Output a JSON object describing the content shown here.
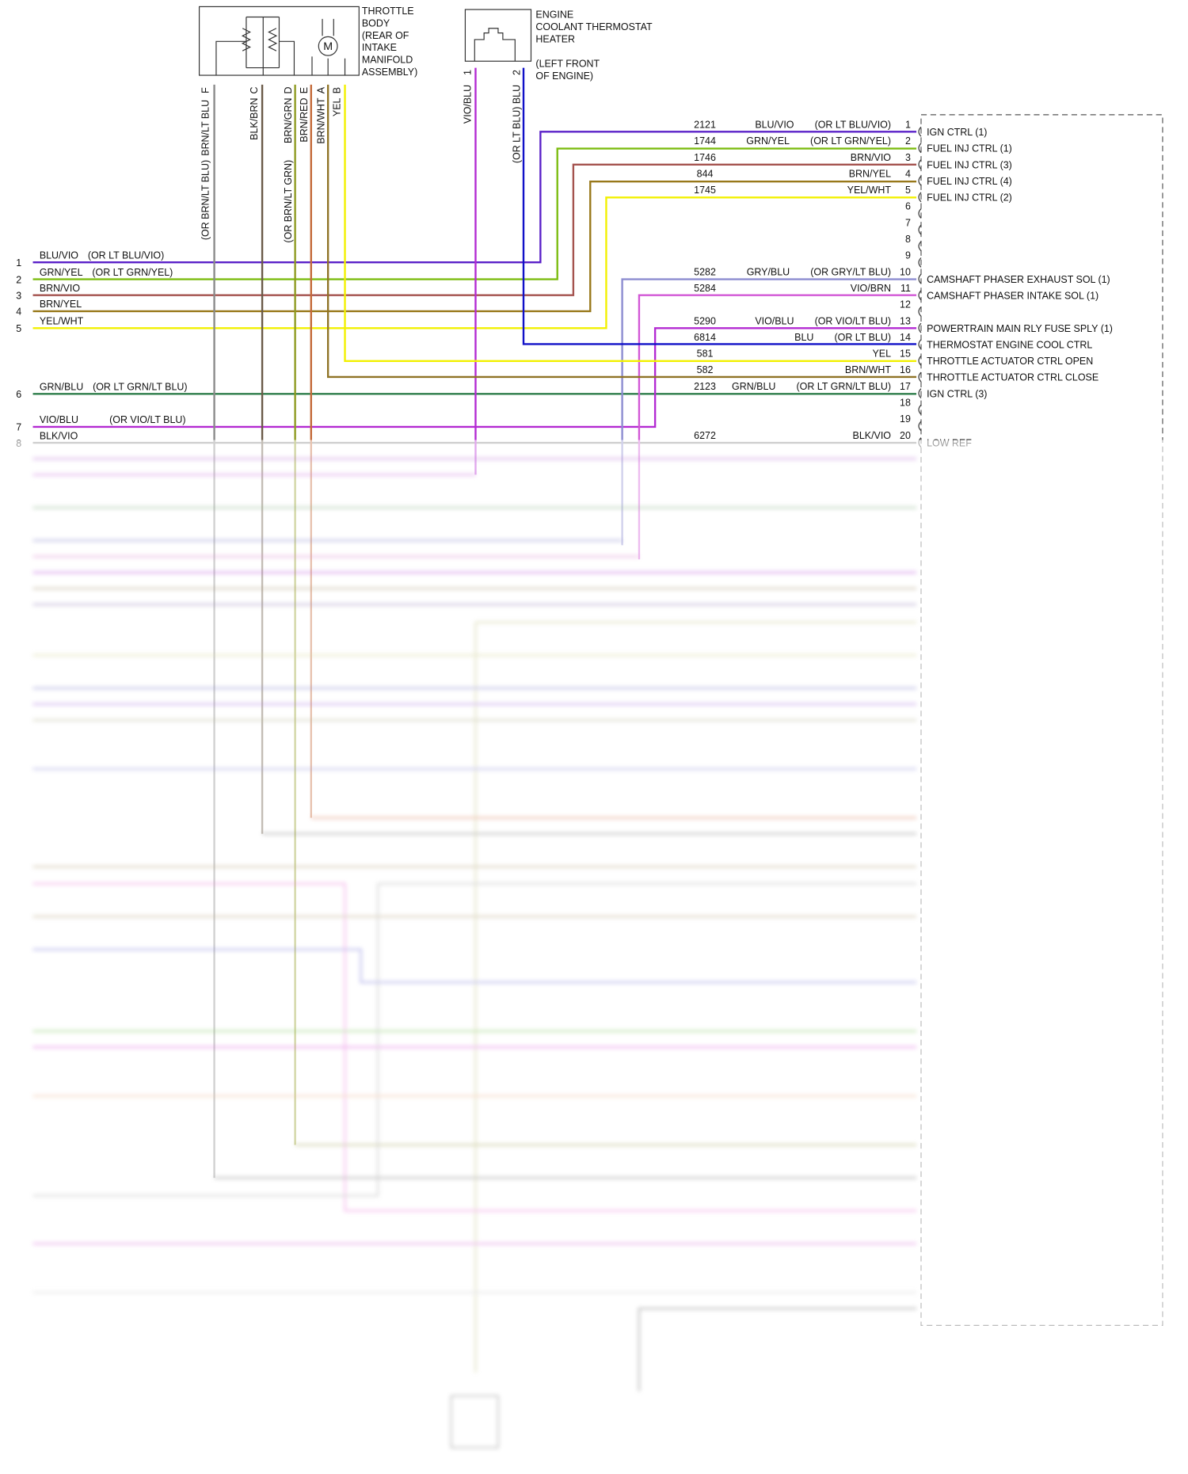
{
  "throttle_body": {
    "label": [
      "THROTTLE",
      "BODY",
      "(REAR OF",
      "INTAKE",
      "MANIFOLD",
      "ASSEMBLY)"
    ],
    "motor": "M",
    "pins": [
      {
        "pin": "F",
        "wire": "BRN/LT BLU",
        "alt": "(OR BRN/LT BLU)"
      },
      {
        "pin": "C",
        "wire": "BLK/BRN"
      },
      {
        "pin": "D",
        "wire": "BRN/GRN",
        "alt": "(OR BRN/LT GRN)"
      },
      {
        "pin": "E",
        "wire": "BRN/RED"
      },
      {
        "pin": "A",
        "wire": "BRN/WHT"
      },
      {
        "pin": "B",
        "wire": "YEL"
      }
    ]
  },
  "thermostat_heater": {
    "label": [
      "ENGINE",
      "COOLANT THERMOSTAT",
      "HEATER"
    ],
    "location": [
      "(LEFT FRONT",
      "OF ENGINE)"
    ],
    "pins": [
      {
        "pin": "1",
        "wire": "VIO/BLU"
      },
      {
        "pin": "2",
        "wire": "(OR LT BLU) BLU"
      }
    ]
  },
  "left_pins": [
    {
      "pin": "1",
      "wire": "BLU/VIO",
      "alt": "(OR LT BLU/VIO)"
    },
    {
      "pin": "2",
      "wire": "GRN/YEL",
      "alt": "(OR LT GRN/YEL)"
    },
    {
      "pin": "3",
      "wire": "BRN/VIO"
    },
    {
      "pin": "4",
      "wire": "BRN/YEL"
    },
    {
      "pin": "5",
      "wire": "YEL/WHT"
    },
    {
      "pin": "6",
      "wire": "GRN/BLU",
      "alt": "(OR LT GRN/LT BLU)"
    },
    {
      "pin": "7",
      "wire": "VIO/BLU",
      "alt": "(OR VIO/LT BLU)"
    },
    {
      "pin": "8",
      "wire": "BLK/VIO"
    }
  ],
  "right_rows": [
    {
      "pin": "1",
      "circuit": "2121",
      "wire": "BLU/VIO",
      "alt": "(OR LT BLU/VIO)",
      "function": "IGN CTRL (1)"
    },
    {
      "pin": "2",
      "circuit": "1744",
      "wire": "GRN/YEL",
      "alt": "(OR LT GRN/YEL)",
      "function": "FUEL INJ CTRL (1)"
    },
    {
      "pin": "3",
      "circuit": "1746",
      "wire": "BRN/VIO",
      "function": "FUEL INJ CTRL (3)"
    },
    {
      "pin": "4",
      "circuit": "844",
      "wire": "BRN/YEL",
      "function": "FUEL INJ CTRL (4)"
    },
    {
      "pin": "5",
      "circuit": "1745",
      "wire": "YEL/WHT",
      "function": "FUEL INJ CTRL (2)"
    },
    {
      "pin": "6"
    },
    {
      "pin": "7"
    },
    {
      "pin": "8"
    },
    {
      "pin": "9"
    },
    {
      "pin": "10",
      "circuit": "5282",
      "wire": "GRY/BLU",
      "alt": "(OR GRY/LT BLU)",
      "function": "CAMSHAFT PHASER EXHAUST SOL (1)"
    },
    {
      "pin": "11",
      "circuit": "5284",
      "wire": "VIO/BRN",
      "function": "CAMSHAFT PHASER INTAKE SOL (1)"
    },
    {
      "pin": "12"
    },
    {
      "pin": "13",
      "circuit": "5290",
      "wire": "VIO/BLU",
      "alt": "(OR VIO/LT BLU)",
      "function": "POWERTRAIN MAIN RLY FUSE SPLY (1)"
    },
    {
      "pin": "14",
      "circuit": "6814",
      "wire": "BLU",
      "alt": "(OR LT BLU)",
      "function": "THERMOSTAT ENGINE COOL CTRL"
    },
    {
      "pin": "15",
      "circuit": "581",
      "wire": "YEL",
      "function": "THROTTLE ACTUATOR CTRL OPEN"
    },
    {
      "pin": "16",
      "circuit": "582",
      "wire": "BRN/WHT",
      "function": "THROTTLE ACTUATOR CTRL CLOSE"
    },
    {
      "pin": "17",
      "circuit": "2123",
      "wire": "GRN/BLU",
      "alt": "(OR LT GRN/LT BLU)",
      "function": "IGN CTRL (3)"
    },
    {
      "pin": "18"
    },
    {
      "pin": "19"
    },
    {
      "pin": "20",
      "circuit": "6272",
      "wire": "BLK/VIO",
      "function": "LOW REF"
    }
  ]
}
